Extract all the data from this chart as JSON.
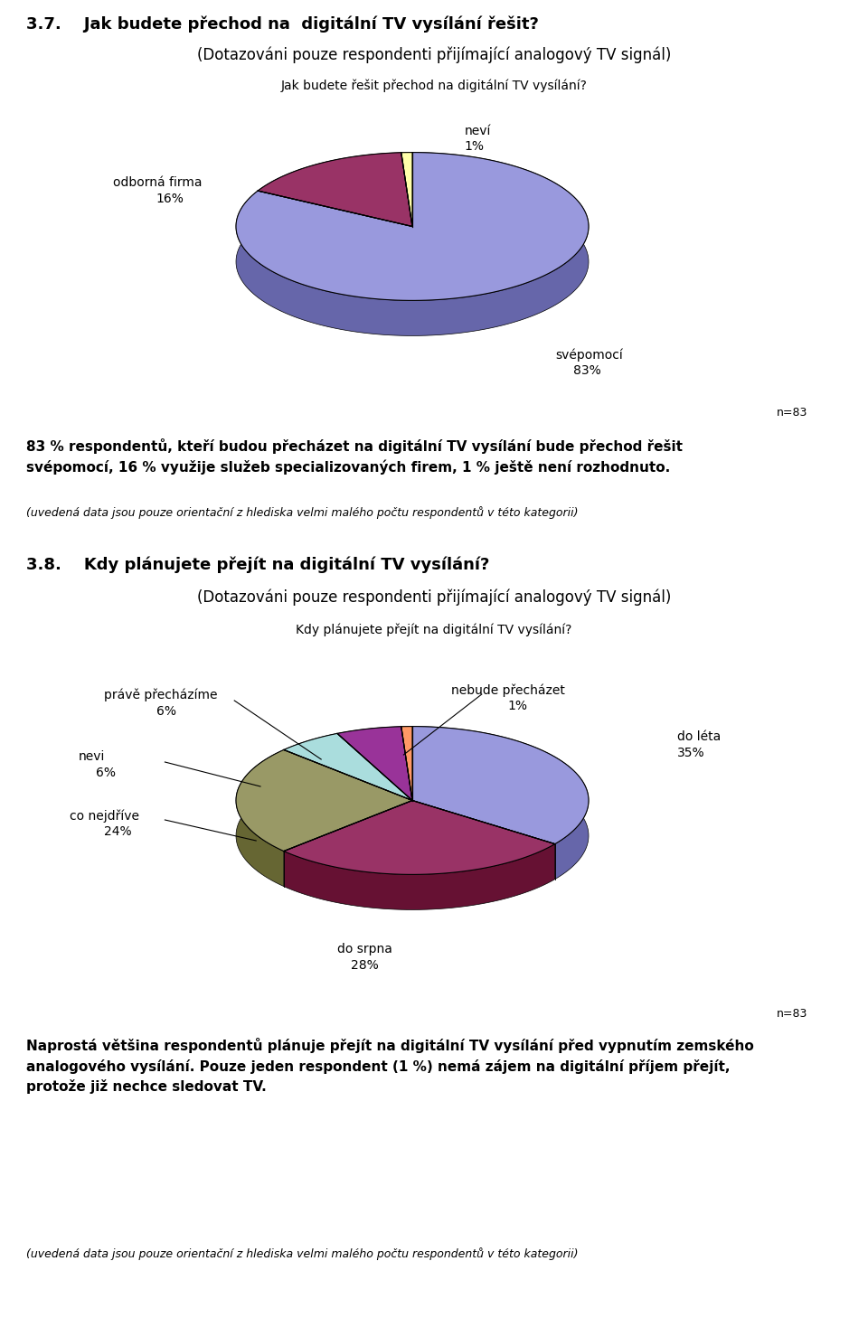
{
  "section1_title": "3.7.    Jak budete přechod na  digitální TV vysílání řešit?",
  "section1_subtitle": "(Dotazováni pouze respondenti přijímající analogový TV signál)",
  "chart1_title": "Jak budete řešit přechod na digitální TV vysílání?",
  "chart1_values": [
    83,
    16,
    1
  ],
  "chart1_colors": [
    "#9999DD",
    "#993366",
    "#FFFFAA"
  ],
  "chart1_dark_colors": [
    "#6666AA",
    "#661133",
    "#CCCC77"
  ],
  "chart1_labels": [
    "svépomocí",
    "odborná firma",
    "neví"
  ],
  "chart1_pcts": [
    "83%",
    "16%",
    "1%"
  ],
  "n1": "n=83",
  "text1_bold": "83 % respondentů, kteří budou přecházet na digitální TV vysílání bude přechod řešit\nsvépomocí, 16 % využije služeb specializovaných firem, 1 % ještě není rozhodnuto.",
  "text1_italic": "(uvedená data jsou pouze orientační z hlediska velmi malého počtu respondentů v této kategorii)",
  "section2_title": "3.8.    Kdy plánujete přejít na digitální TV vysílání?",
  "section2_subtitle": "(Dotazováni pouze respondenti přijímající analogový TV signál)",
  "chart2_title": "Kdy plánujete přejít na digitální TV vysílání?",
  "chart2_values": [
    35,
    28,
    24,
    6,
    6,
    1
  ],
  "chart2_colors": [
    "#9999DD",
    "#993366",
    "#999966",
    "#AADDDD",
    "#993399",
    "#FF9966"
  ],
  "chart2_dark_colors": [
    "#6666AA",
    "#661133",
    "#666633",
    "#77AAAA",
    "#662266",
    "#CC6633"
  ],
  "chart2_labels": [
    "do léta",
    "do srpna",
    "co nejdříve",
    "nevi",
    "právě přecházíme",
    "nebude přecházet"
  ],
  "chart2_pcts": [
    "35%",
    "28%",
    "24%",
    "6%",
    "6%",
    "1%"
  ],
  "n2": "n=83",
  "text2_bold": "Naprostá většina respondentů plánuje přejít na digitální TV vysílání před vypnutím zemského\nanalogového vysílání. Pouze jeden respondent (1 %) nemá zájem na digitální příjem přejít,\nprotože již nechce sledovat TV.",
  "text2_italic": "(uvedená data jsou pouze orientační z hlediska velmi malého počtu respondentů v této kategorii)"
}
